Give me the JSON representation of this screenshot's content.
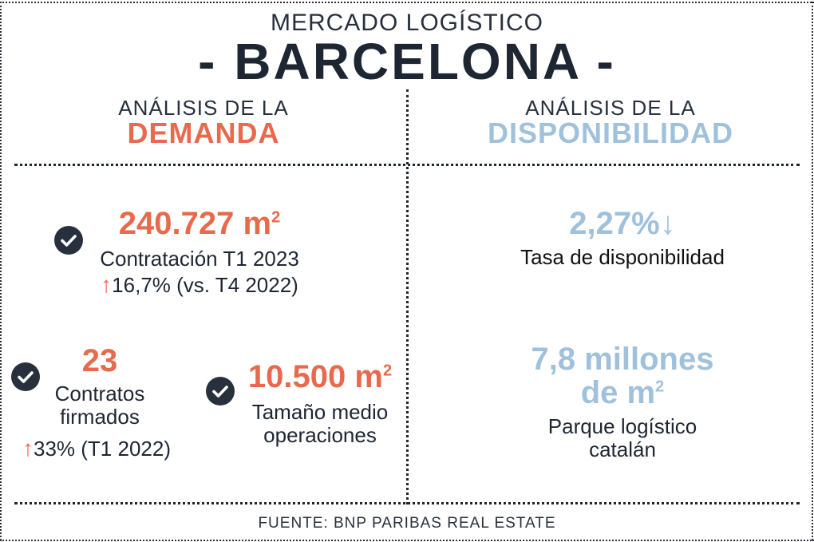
{
  "header": {
    "title_small": "MERCADO LOGÍSTICO",
    "title_big": "- BARCELONA -"
  },
  "colors": {
    "accent_orange": "#e8694c",
    "accent_blue": "#9fc1dc",
    "text_dark": "#1e2633"
  },
  "demand": {
    "heading_line1": "ANÁLISIS DE LA",
    "heading_line2": "DEMANDA",
    "contratacion": {
      "value": "240.727 m",
      "unit_sup": "2",
      "label": "Contratación T1 2023",
      "arrow": "↑",
      "change": "16,7% (vs. T4 2022)"
    },
    "contratos": {
      "value": "23",
      "label_line1": "Contratos",
      "label_line2": "firmados",
      "arrow": "↑",
      "change": "33% (T1 2022)"
    },
    "tamano": {
      "value": "10.500 m",
      "unit_sup": "2",
      "label_line1": "Tamaño medio",
      "label_line2": "operaciones"
    }
  },
  "availability": {
    "heading_line1": "ANÁLISIS DE LA",
    "heading_line2": "DISPONIBILIDAD",
    "tasa": {
      "value": "2,27%",
      "arrow": "↓",
      "label": "Tasa de disponibilidad"
    },
    "parque": {
      "value_line1": "7,8 millones",
      "value_line2": "de m",
      "unit_sup": "2",
      "label_line1": "Parque logístico",
      "label_line2": "catalán"
    }
  },
  "footer": {
    "source": "FUENTE: BNP PARIBAS REAL ESTATE"
  },
  "icons": {
    "check": "check-circle-icon"
  }
}
